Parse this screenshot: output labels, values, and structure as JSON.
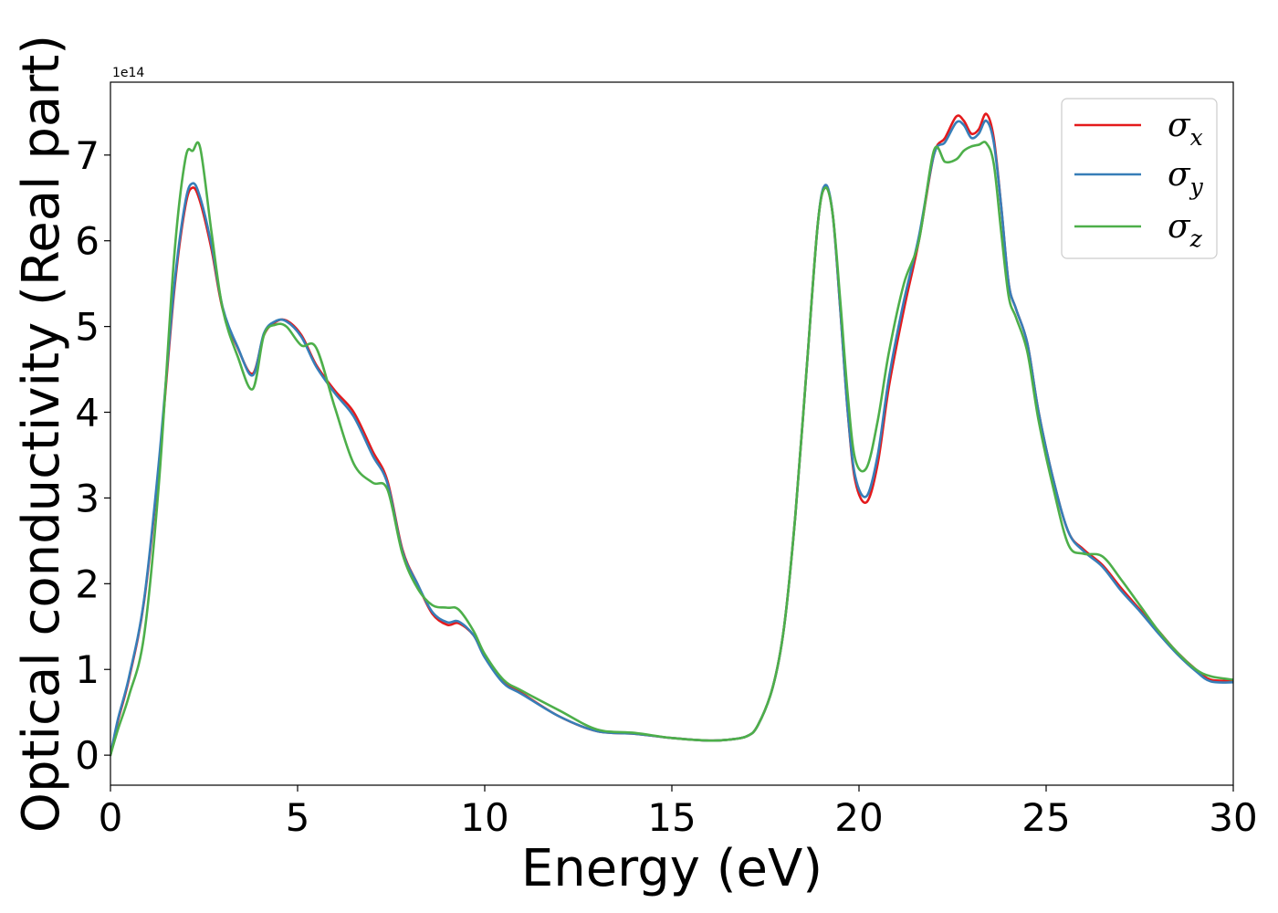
{
  "chart_data": {
    "type": "line",
    "title": "",
    "xlabel": "Energy (eV)",
    "ylabel": "Optical conductivity (Real part)",
    "y_offset_label": "1e14",
    "xlim": [
      0,
      30
    ],
    "ylim": [
      -0.35,
      7.85
    ],
    "xticks": [
      0,
      5,
      10,
      15,
      20,
      25,
      30
    ],
    "xtick_labels": [
      "0",
      "5",
      "10",
      "15",
      "20",
      "25",
      "30"
    ],
    "yticks": [
      0,
      1,
      2,
      3,
      4,
      5,
      6,
      7
    ],
    "ytick_labels": [
      "0",
      "1",
      "2",
      "3",
      "4",
      "5",
      "6",
      "7"
    ],
    "grid": false,
    "legend_position": "top-right",
    "series": [
      {
        "name": "σx",
        "legend_base": "σ",
        "legend_sub": "x",
        "color": "#e41a1c",
        "x": [
          0,
          0.2,
          0.5,
          0.9,
          1.3,
          1.7,
          2.0,
          2.2,
          2.4,
          2.7,
          3.0,
          3.4,
          3.8,
          4.1,
          4.4,
          4.7,
          5.1,
          5.5,
          6.0,
          6.5,
          7.0,
          7.4,
          7.8,
          8.2,
          8.6,
          9.0,
          9.3,
          9.7,
          10.0,
          10.5,
          11.0,
          12.0,
          13.0,
          14.0,
          15.0,
          16.0,
          16.5,
          17.0,
          17.3,
          17.7,
          18.0,
          18.3,
          18.6,
          18.9,
          19.1,
          19.3,
          19.5,
          19.7,
          19.9,
          20.2,
          20.5,
          20.8,
          21.2,
          21.6,
          22.0,
          22.3,
          22.6,
          22.8,
          23.0,
          23.2,
          23.4,
          23.6,
          23.8,
          24.0,
          24.2,
          24.5,
          24.8,
          25.2,
          25.6,
          26.0,
          26.5,
          27.0,
          27.5,
          28.0,
          28.5,
          29.0,
          29.4,
          30.0
        ],
        "y": [
          0.0,
          0.4,
          0.9,
          1.8,
          3.4,
          5.4,
          6.4,
          6.62,
          6.45,
          5.9,
          5.2,
          4.75,
          4.45,
          4.9,
          5.05,
          5.07,
          4.9,
          4.55,
          4.25,
          4.0,
          3.55,
          3.2,
          2.4,
          2.0,
          1.65,
          1.52,
          1.54,
          1.4,
          1.15,
          0.85,
          0.72,
          0.45,
          0.28,
          0.25,
          0.2,
          0.17,
          0.18,
          0.22,
          0.35,
          0.8,
          1.5,
          2.8,
          4.5,
          6.2,
          6.62,
          6.3,
          5.2,
          4.0,
          3.2,
          2.95,
          3.4,
          4.3,
          5.2,
          6.0,
          7.0,
          7.2,
          7.45,
          7.4,
          7.25,
          7.3,
          7.48,
          7.2,
          6.4,
          5.5,
          5.2,
          4.8,
          4.0,
          3.2,
          2.6,
          2.4,
          2.22,
          1.95,
          1.7,
          1.45,
          1.2,
          1.0,
          0.88,
          0.87
        ]
      },
      {
        "name": "σy",
        "legend_base": "σ",
        "legend_sub": "y",
        "color": "#377eb8",
        "x": [
          0,
          0.2,
          0.5,
          0.9,
          1.3,
          1.7,
          2.0,
          2.2,
          2.4,
          2.7,
          3.0,
          3.4,
          3.8,
          4.1,
          4.4,
          4.7,
          5.1,
          5.5,
          6.0,
          6.5,
          7.0,
          7.4,
          7.8,
          8.2,
          8.6,
          9.0,
          9.3,
          9.7,
          10.0,
          10.5,
          11.0,
          12.0,
          13.0,
          14.0,
          15.0,
          16.0,
          16.5,
          17.0,
          17.3,
          17.7,
          18.0,
          18.3,
          18.6,
          18.9,
          19.1,
          19.3,
          19.5,
          19.7,
          19.9,
          20.2,
          20.5,
          20.8,
          21.2,
          21.6,
          22.0,
          22.3,
          22.6,
          22.8,
          23.0,
          23.2,
          23.4,
          23.6,
          23.8,
          24.0,
          24.2,
          24.5,
          24.8,
          25.2,
          25.6,
          26.0,
          26.5,
          27.0,
          27.5,
          28.0,
          28.5,
          29.0,
          29.4,
          30.0
        ],
        "y": [
          0.0,
          0.42,
          0.92,
          1.82,
          3.45,
          5.45,
          6.45,
          6.67,
          6.5,
          5.95,
          5.22,
          4.76,
          4.43,
          4.92,
          5.06,
          5.06,
          4.88,
          4.53,
          4.22,
          3.95,
          3.5,
          3.17,
          2.38,
          2.0,
          1.67,
          1.55,
          1.56,
          1.4,
          1.14,
          0.84,
          0.71,
          0.45,
          0.28,
          0.25,
          0.2,
          0.17,
          0.18,
          0.22,
          0.35,
          0.8,
          1.5,
          2.8,
          4.5,
          6.2,
          6.65,
          6.3,
          5.2,
          4.0,
          3.25,
          3.02,
          3.5,
          4.4,
          5.3,
          6.05,
          7.0,
          7.15,
          7.38,
          7.35,
          7.2,
          7.25,
          7.4,
          7.15,
          6.4,
          5.5,
          5.2,
          4.8,
          4.0,
          3.2,
          2.6,
          2.38,
          2.2,
          1.92,
          1.68,
          1.42,
          1.18,
          0.98,
          0.86,
          0.85
        ]
      },
      {
        "name": "σz",
        "legend_base": "σ",
        "legend_sub": "z",
        "color": "#4daf4a",
        "x": [
          0,
          0.2,
          0.5,
          0.9,
          1.3,
          1.7,
          2.0,
          2.2,
          2.4,
          2.7,
          3.0,
          3.4,
          3.8,
          4.1,
          4.4,
          4.7,
          5.1,
          5.5,
          6.0,
          6.5,
          7.0,
          7.4,
          7.8,
          8.2,
          8.6,
          9.0,
          9.3,
          9.7,
          10.0,
          10.5,
          11.0,
          12.0,
          13.0,
          14.0,
          15.0,
          16.0,
          16.5,
          17.0,
          17.3,
          17.7,
          18.0,
          18.3,
          18.6,
          18.9,
          19.1,
          19.3,
          19.5,
          19.7,
          19.9,
          20.2,
          20.5,
          20.8,
          21.2,
          21.6,
          22.0,
          22.3,
          22.6,
          22.8,
          23.0,
          23.2,
          23.4,
          23.6,
          23.8,
          24.0,
          24.2,
          24.5,
          24.8,
          25.2,
          25.6,
          26.0,
          26.5,
          27.0,
          27.5,
          28.0,
          28.5,
          29.0,
          29.4,
          30.0
        ],
        "y": [
          0.0,
          0.3,
          0.7,
          1.4,
          3.2,
          5.8,
          6.95,
          7.05,
          7.08,
          6.1,
          5.2,
          4.65,
          4.27,
          4.9,
          5.02,
          5.0,
          4.78,
          4.75,
          4.05,
          3.4,
          3.18,
          3.1,
          2.35,
          1.95,
          1.75,
          1.72,
          1.7,
          1.45,
          1.18,
          0.88,
          0.75,
          0.52,
          0.3,
          0.26,
          0.2,
          0.17,
          0.18,
          0.22,
          0.35,
          0.8,
          1.5,
          2.8,
          4.5,
          6.2,
          6.62,
          6.3,
          5.3,
          4.2,
          3.45,
          3.35,
          3.9,
          4.7,
          5.5,
          6.0,
          7.05,
          6.92,
          6.95,
          7.05,
          7.1,
          7.12,
          7.14,
          6.9,
          6.1,
          5.35,
          5.1,
          4.7,
          3.9,
          3.1,
          2.45,
          2.35,
          2.32,
          2.05,
          1.75,
          1.45,
          1.2,
          1.0,
          0.92,
          0.88
        ]
      }
    ]
  }
}
